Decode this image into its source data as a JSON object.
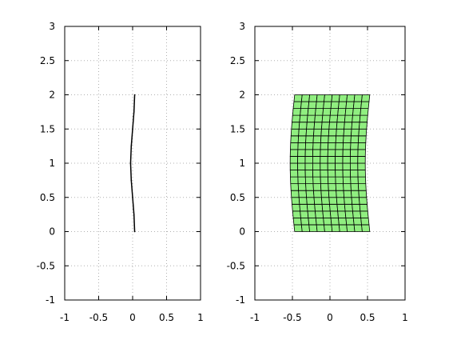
{
  "chart_data": [
    {
      "type": "line",
      "title": "",
      "xlabel": "",
      "ylabel": "",
      "xlim": [
        -1,
        1
      ],
      "ylim": [
        -1,
        3
      ],
      "grid": true,
      "x_ticks": [
        "-1",
        "-0.5",
        "0",
        "0.5",
        "1"
      ],
      "y_ticks": [
        "-1",
        "-0.5",
        "0",
        "0.5",
        "1",
        "1.5",
        "2",
        "2.5",
        "3"
      ],
      "x_tick_values": [
        -1,
        -0.5,
        0,
        0.5,
        1
      ],
      "y_tick_values": [
        -1,
        -0.5,
        0,
        0.5,
        1,
        1.5,
        2,
        2.5,
        3
      ],
      "series": [
        {
          "color": "#000000",
          "points": [
            [
              0.03,
              0.0
            ],
            [
              0.02,
              0.25
            ],
            [
              0.0,
              0.5
            ],
            [
              -0.02,
              0.75
            ],
            [
              -0.03,
              1.0
            ],
            [
              -0.02,
              1.25
            ],
            [
              0.0,
              1.5
            ],
            [
              0.02,
              1.75
            ],
            [
              0.03,
              2.0
            ]
          ]
        }
      ]
    },
    {
      "type": "mesh",
      "title": "",
      "xlabel": "",
      "ylabel": "",
      "xlim": [
        -1,
        1
      ],
      "ylim": [
        -1,
        3
      ],
      "grid": true,
      "x_ticks": [
        "-1",
        "-0.5",
        "0",
        "0.5",
        "1"
      ],
      "y_ticks": [
        "-1",
        "-0.5",
        "0",
        "0.5",
        "1",
        "1.5",
        "2",
        "2.5",
        "3"
      ],
      "x_tick_values": [
        -1,
        -0.5,
        0,
        0.5,
        1
      ],
      "y_tick_values": [
        -1,
        -0.5,
        0,
        0.5,
        1,
        1.5,
        2,
        2.5,
        3
      ],
      "mesh": {
        "fill_color": "#90ee80",
        "line_color": "#000000",
        "x_range": [
          -0.47,
          0.53
        ],
        "y_range": [
          0.0,
          2.0
        ],
        "columns": 10,
        "rows": 20,
        "bend_amplitude": 0.06
      }
    }
  ]
}
